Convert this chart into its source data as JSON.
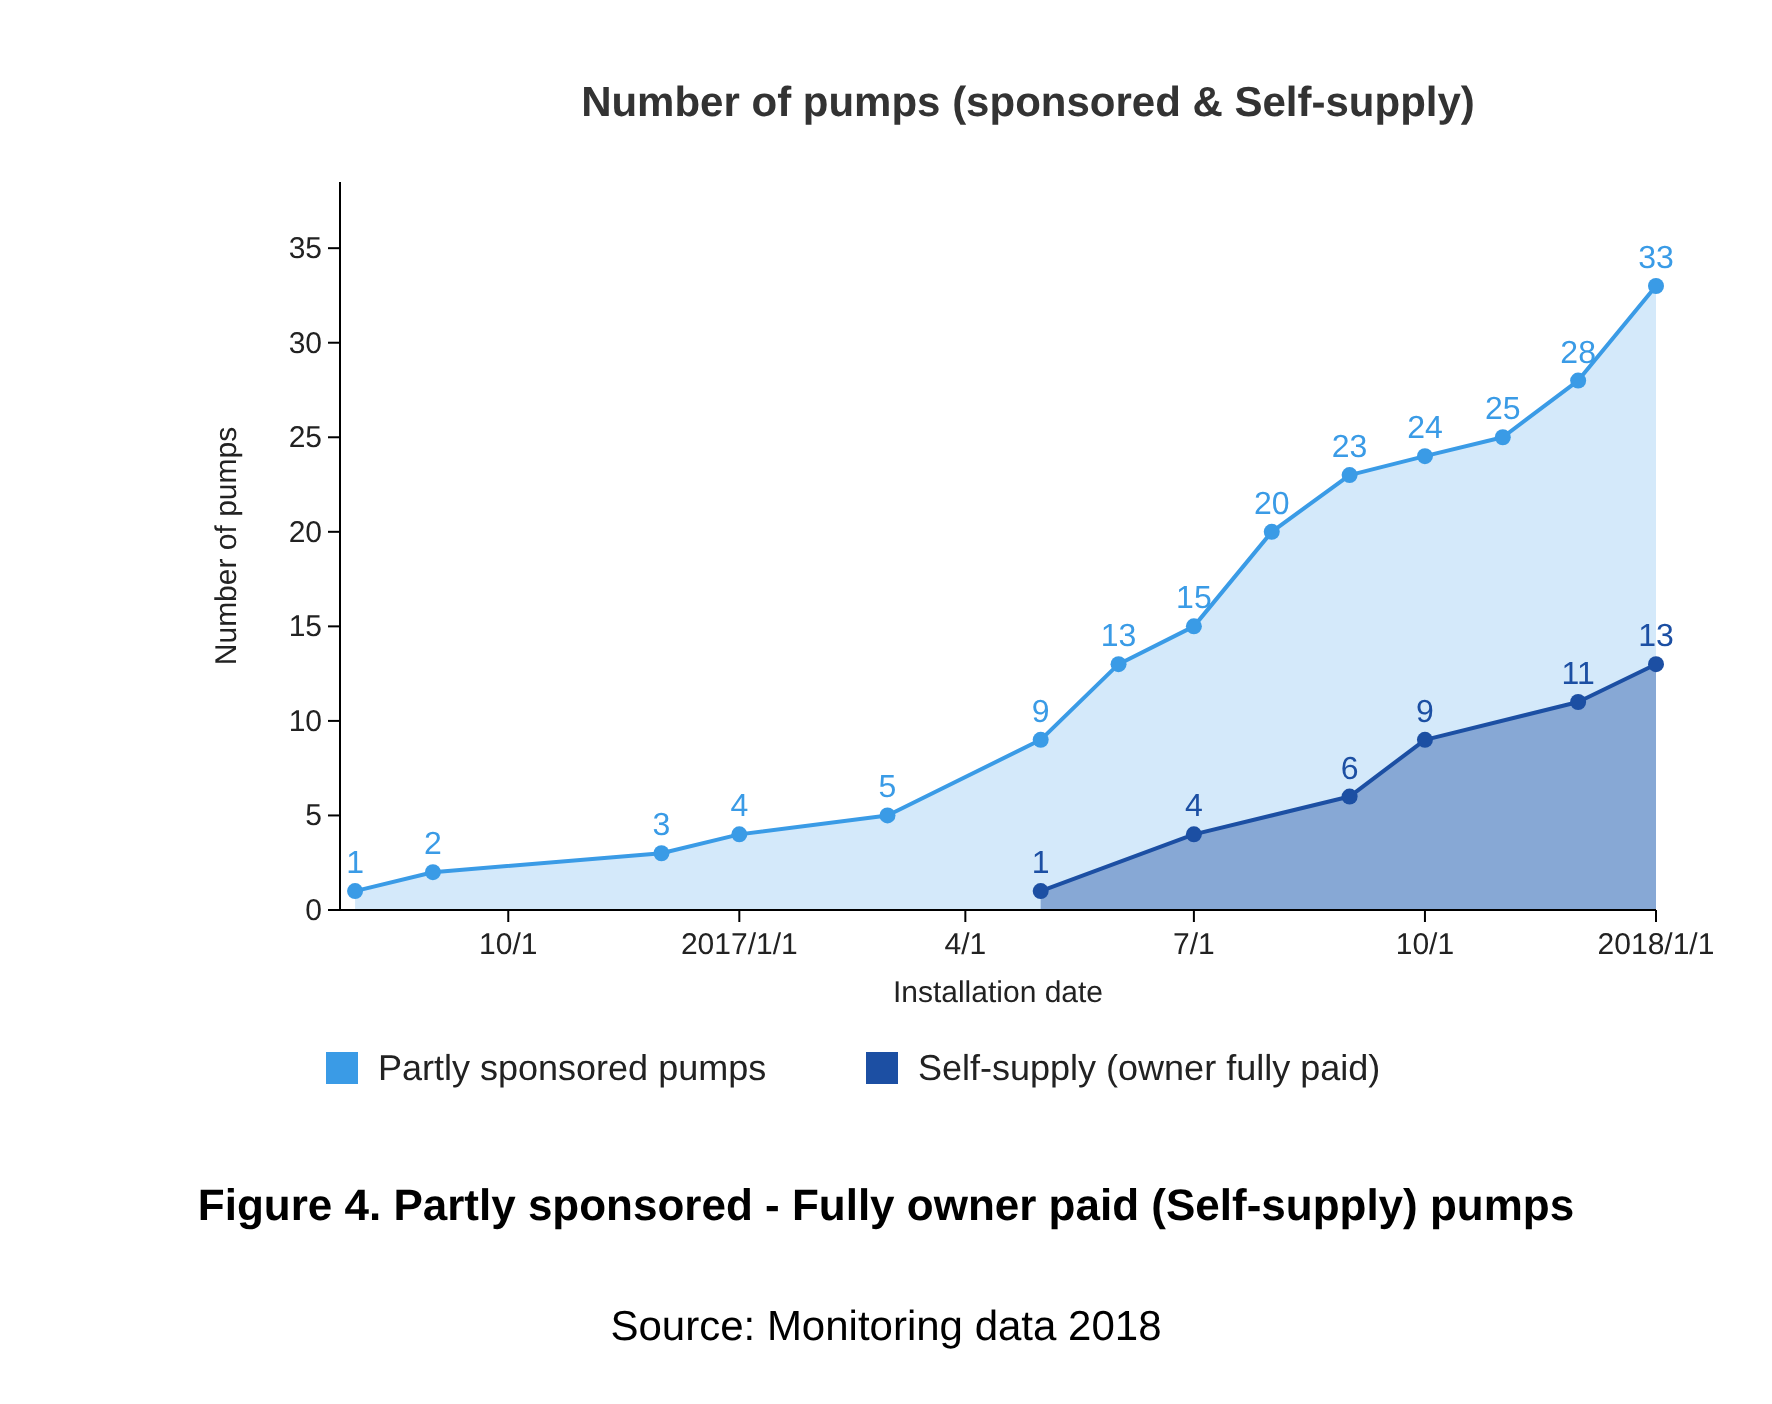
{
  "chart_data": {
    "type": "area",
    "title": "Number of pumps (sponsored & Self-supply)",
    "xlabel": "Installation date",
    "ylabel": "Number of pumps",
    "xlim": [
      "2016-07-26",
      "2018-01-01"
    ],
    "xticks": [
      {
        "value": "2016-10-01",
        "label": "10/1"
      },
      {
        "value": "2017-01-01",
        "label": "2017/1/1"
      },
      {
        "value": "2017-04-01",
        "label": "4/1"
      },
      {
        "value": "2017-07-01",
        "label": "7/1"
      },
      {
        "value": "2017-10-01",
        "label": "10/1"
      },
      {
        "value": "2018-01-01",
        "label": "2018/1/1"
      }
    ],
    "ylim": [
      0,
      38.5
    ],
    "yticks": [
      0,
      5,
      10,
      15,
      20,
      25,
      30,
      35
    ],
    "grid": false,
    "legend": "bottom",
    "marker": "circle",
    "data_labels": true,
    "series": [
      {
        "name": "Partly sponsored pumps",
        "color": "#3a9be6",
        "x": [
          "2016-08-01",
          "2016-09-01",
          "2016-12-01",
          "2017-01-01",
          "2017-03-01",
          "2017-05-01",
          "2017-06-01",
          "2017-07-01",
          "2017-08-01",
          "2017-09-01",
          "2017-10-01",
          "2017-11-01",
          "2017-12-01",
          "2018-01-01"
        ],
        "values": [
          1,
          2,
          3,
          4,
          5,
          9,
          13,
          15,
          20,
          23,
          24,
          25,
          28,
          33
        ]
      },
      {
        "name": "Self-supply (owner fully paid)",
        "color": "#1c4fa3",
        "x": [
          "2017-05-01",
          "2017-07-01",
          "2017-09-01",
          "2017-10-01",
          "2017-12-01",
          "2018-01-01"
        ],
        "values": [
          1,
          4,
          6,
          9,
          11,
          13
        ]
      }
    ],
    "annotations": [
      "Figure 4. Partly sponsored - Fully owner paid (Self-supply) pumps",
      "Source: Monitoring data 2018"
    ]
  }
}
